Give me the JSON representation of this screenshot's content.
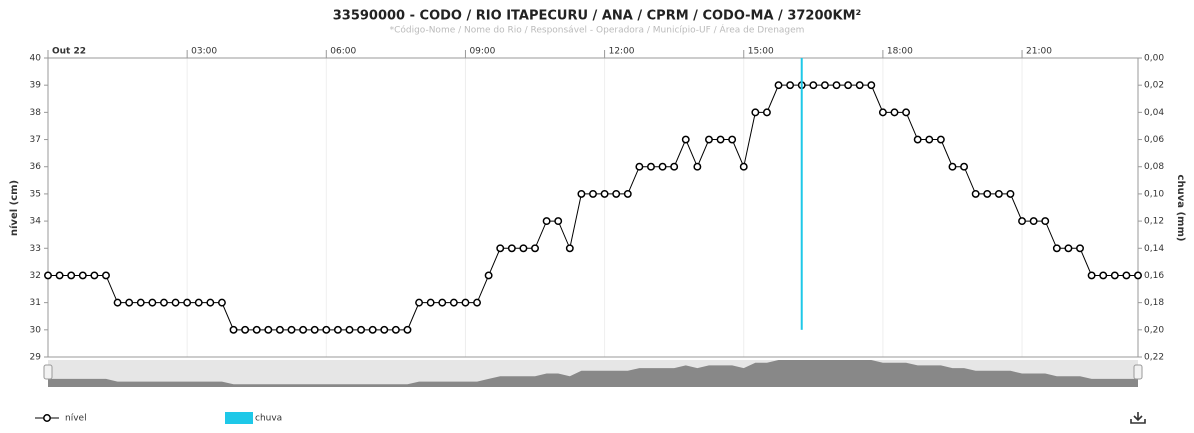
{
  "chart_data": {
    "type": "line",
    "title": "33590000 - CODO / RIO ITAPECURU / ANA / CPRM / CODO-MA / 37200KM²",
    "subtitle": "*Código-Nome / Nome do Rio / Responsável - Operadora / Município-UF / Área de Drenagem",
    "ylabel": "nível (cm)",
    "y2label": "chuva (mm)",
    "categories": [
      "Out 22",
      null,
      null,
      null,
      null,
      null,
      null,
      null,
      null,
      null,
      null,
      null,
      "03:00",
      null,
      null,
      null,
      null,
      null,
      null,
      null,
      null,
      null,
      null,
      null,
      "06:00",
      null,
      null,
      null,
      null,
      null,
      null,
      null,
      null,
      null,
      null,
      null,
      "09:00",
      null,
      null,
      null,
      null,
      null,
      null,
      null,
      null,
      null,
      null,
      null,
      "12:00",
      null,
      null,
      null,
      null,
      null,
      null,
      null,
      null,
      null,
      null,
      null,
      "15:00",
      null,
      null,
      null,
      null,
      null,
      null,
      null,
      null,
      null,
      null,
      null,
      "18:00",
      null,
      null,
      null,
      null,
      null,
      null,
      null,
      null,
      null,
      null,
      null,
      "21:00",
      null,
      null,
      null,
      null,
      null,
      null,
      null,
      null,
      null,
      null
    ],
    "series": [
      {
        "name": "nível",
        "color": "#000000",
        "values": [
          32,
          32,
          32,
          32,
          32,
          32,
          31,
          31,
          31,
          31,
          31,
          31,
          31,
          31,
          31,
          31,
          30,
          30,
          30,
          30,
          30,
          30,
          30,
          30,
          30,
          30,
          30,
          30,
          30,
          30,
          30,
          30,
          31,
          31,
          31,
          31,
          31,
          31,
          32,
          33,
          33,
          33,
          33,
          34,
          34,
          33,
          35,
          35,
          35,
          35,
          35,
          36,
          36,
          36,
          36,
          37,
          36,
          37,
          37,
          37,
          36,
          38,
          38,
          39,
          39,
          39,
          39,
          39,
          39,
          39,
          39,
          39,
          38,
          38,
          38,
          37,
          37,
          37,
          36,
          36,
          35,
          35,
          35,
          35,
          34,
          34,
          34,
          33,
          33,
          33,
          32,
          32,
          32,
          32,
          32
        ]
      },
      {
        "name": "chuva",
        "color": "#1ec8e8",
        "axis": "y2",
        "type": "bar",
        "values": [
          0,
          0,
          0,
          0,
          0,
          0,
          0,
          0,
          0,
          0,
          0,
          0,
          0,
          0,
          0,
          0,
          0,
          0,
          0,
          0,
          0,
          0,
          0,
          0,
          0,
          0,
          0,
          0,
          0,
          0,
          0,
          0,
          0,
          0,
          0,
          0,
          0,
          0,
          0,
          0,
          0,
          0,
          0,
          0,
          0,
          0,
          0,
          0,
          0,
          0,
          0,
          0,
          0,
          0,
          0,
          0,
          0,
          0,
          0,
          0,
          0,
          0,
          0,
          0,
          0,
          0.2,
          0,
          0,
          0,
          0,
          0,
          0,
          0,
          0,
          0,
          0,
          0,
          0,
          0,
          0,
          0,
          0,
          0,
          0,
          0,
          0,
          0,
          0,
          0,
          0,
          0,
          0,
          0,
          0,
          0
        ]
      }
    ],
    "ylim": [
      29,
      40
    ],
    "yticks": [
      29,
      30,
      31,
      32,
      33,
      34,
      35,
      36,
      37,
      38,
      39,
      40
    ],
    "y2lim": [
      0,
      0.22
    ],
    "y2_reversed": true,
    "y2ticks": [
      {
        "value": 0,
        "label": "0,00"
      },
      {
        "value": 0.02,
        "label": "0,02"
      },
      {
        "value": 0.04,
        "label": "0,04"
      },
      {
        "value": 0.06,
        "label": "0,06"
      },
      {
        "value": 0.08,
        "label": "0,08"
      },
      {
        "value": 0.1,
        "label": "0,10"
      },
      {
        "value": 0.12,
        "label": "0,12"
      },
      {
        "value": 0.14,
        "label": "0,14"
      },
      {
        "value": 0.16,
        "label": "0,16"
      },
      {
        "value": 0.18,
        "label": "0,18"
      },
      {
        "value": 0.2,
        "label": "0,20"
      },
      {
        "value": 0.22,
        "label": "0,22"
      }
    ],
    "grid": true,
    "legend": "bottom-left"
  }
}
